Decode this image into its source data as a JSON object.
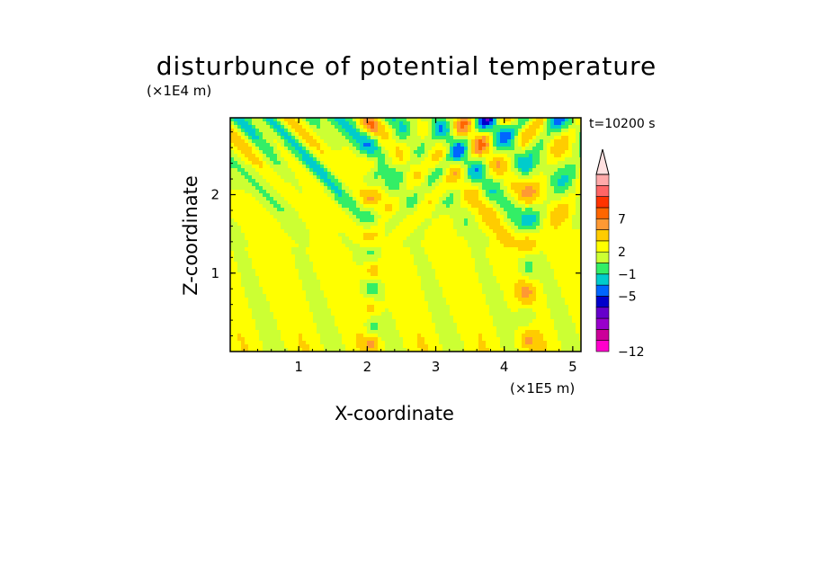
{
  "chart_data": {
    "type": "heatmap",
    "title": "disturbunce of potential temperature",
    "xlabel": "X-coordinate",
    "ylabel": "Z-coordinate",
    "x_scale_label": "(×1E5 m)",
    "y_scale_label": "(×1E4 m)",
    "time_label": "t=10200 s",
    "xlim": [
      0,
      5.12
    ],
    "ylim": [
      0,
      2.98
    ],
    "x_ticks": [
      "1",
      "2",
      "3",
      "4",
      "5"
    ],
    "y_ticks": [
      "1",
      "2"
    ],
    "colorbar": {
      "levels": [
        "-12",
        "-5",
        "-1",
        "2",
        "7"
      ],
      "colors": [
        "#ff00cc",
        "#cc0099",
        "#9900cc",
        "#6600cc",
        "#0000cc",
        "#0066ff",
        "#00cccc",
        "#33ee66",
        "#ccff33",
        "#ffff00",
        "#ffcc00",
        "#ff9933",
        "#ff6600",
        "#ff3300",
        "#ff6666",
        "#ffaaaa",
        "#ffe0e0"
      ]
    },
    "field_description_note": ""
  }
}
